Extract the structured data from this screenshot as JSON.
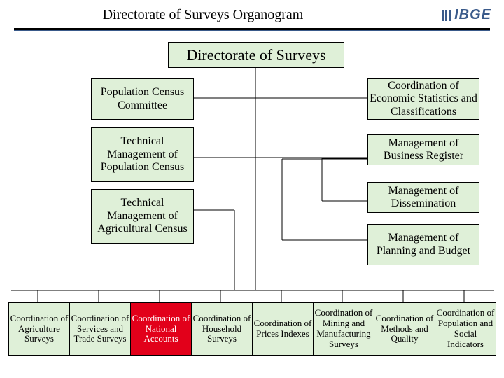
{
  "header": {
    "title": "Directorate of Surveys Organogram",
    "logo": "IBGE"
  },
  "colors": {
    "box": "#dff0d8",
    "highlight": "#e2001a",
    "logo": "#3a5a8a"
  },
  "root": {
    "label": "Directorate of Surveys"
  },
  "left_boxes": [
    "Population Census Committee",
    "Technical Management of Population Census",
    "Technical Management of Agricultural Census"
  ],
  "right_boxes": [
    "Coordination of Economic Statistics and Classifications",
    "Management of Business Register",
    "Management of Dissemination",
    "Management of Planning and Budget"
  ],
  "bottom": [
    {
      "label": "Coordination of Agriculture Surveys",
      "hl": false
    },
    {
      "label": "Coordination of Services and Trade Surveys",
      "hl": false
    },
    {
      "label": "Coordination of National Accounts",
      "hl": true
    },
    {
      "label": "Coordination of Household Surveys",
      "hl": false
    },
    {
      "label": "Coordination of Prices Indexes",
      "hl": false
    },
    {
      "label": "Coordination of Mining and Manufacturing Surveys",
      "hl": false
    },
    {
      "label": "Coordination of Methods and Quality",
      "hl": false
    },
    {
      "label": "Coordination of Population and Social Indicators",
      "hl": false
    }
  ]
}
